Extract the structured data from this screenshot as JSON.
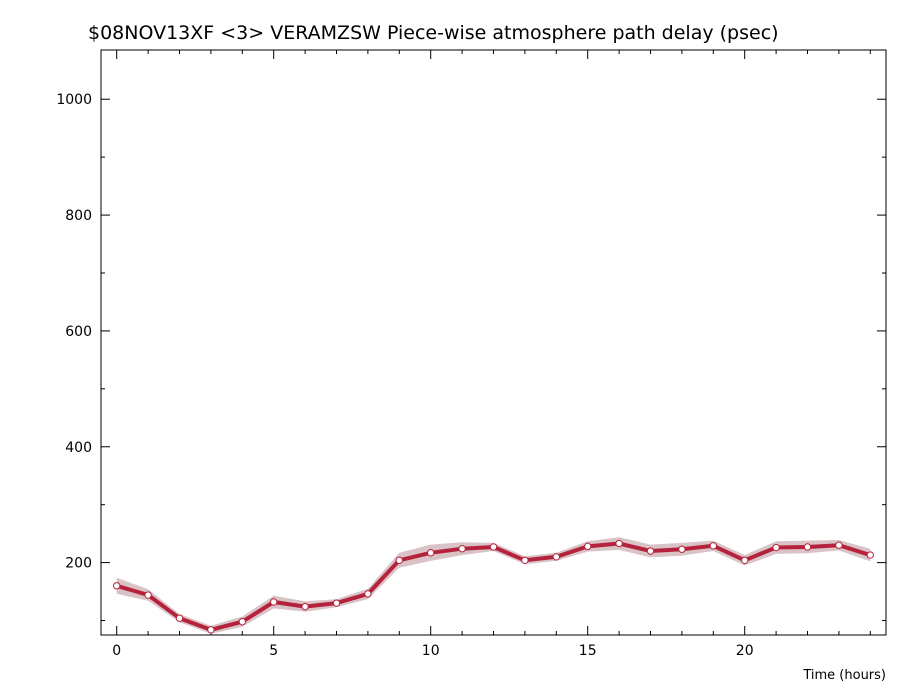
{
  "chart_data": {
    "type": "line",
    "title": "$08NOV13XF <3>  VERAMZSW  Piece-wise atmosphere path delay (psec)",
    "xlabel": "Time (hours)",
    "ylabel": "",
    "xlim": [
      -0.5,
      24.5
    ],
    "ylim": [
      75,
      1085
    ],
    "grid": false,
    "x_ticks": [
      0,
      5,
      10,
      15,
      20
    ],
    "y_ticks": [
      200,
      400,
      600,
      800,
      1000
    ],
    "series": [
      {
        "color": "#b5223c",
        "band_color": "#d9c3c6",
        "x": [
          0,
          1,
          2,
          3,
          4,
          5,
          6,
          7,
          8,
          9,
          10,
          11,
          12,
          13,
          14,
          15,
          16,
          17,
          18,
          19,
          20,
          21,
          22,
          23,
          24
        ],
        "values": [
          160,
          144,
          104,
          84,
          98,
          132,
          124,
          130,
          146,
          204,
          217,
          224,
          227,
          204,
          210,
          228,
          233,
          220,
          223,
          229,
          204,
          226,
          227,
          230,
          213
        ],
        "band_halfwidth": [
          14,
          10,
          7,
          7,
          9,
          11,
          9,
          7,
          9,
          13,
          14,
          11,
          7,
          7,
          7,
          9,
          11,
          11,
          11,
          9,
          9,
          11,
          11,
          9,
          11
        ]
      }
    ]
  }
}
